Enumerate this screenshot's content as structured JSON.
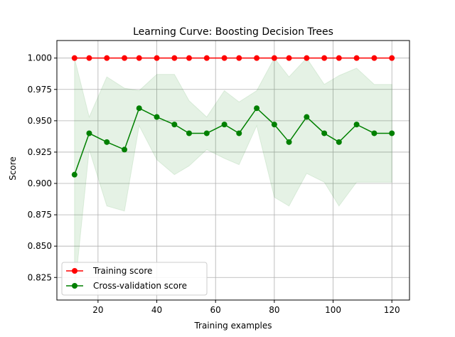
{
  "chart_data": {
    "type": "line",
    "title": "Learning Curve: Boosting Decision Trees",
    "xlabel": "Training examples",
    "ylabel": "Score",
    "xlim": [
      6,
      126
    ],
    "ylim": [
      0.807,
      1.014
    ],
    "xticks": [
      20,
      40,
      60,
      80,
      100,
      120
    ],
    "yticks": [
      0.825,
      0.85,
      0.875,
      0.9,
      0.925,
      0.95,
      0.975,
      1.0
    ],
    "ytick_labels": [
      "0.825",
      "0.850",
      "0.875",
      "0.900",
      "0.925",
      "0.950",
      "0.975",
      "1.000"
    ],
    "grid": true,
    "legend_position": "lower-left",
    "x": [
      12,
      17,
      23,
      29,
      34,
      40,
      46,
      51,
      57,
      63,
      68,
      74,
      80,
      85,
      91,
      97,
      102,
      108,
      114,
      120
    ],
    "series": [
      {
        "name": "Training score",
        "color": "#ff0000",
        "band_color": "#ff0000",
        "values": [
          1,
          1,
          1,
          1,
          1,
          1,
          1,
          1,
          1,
          1,
          1,
          1,
          1,
          1,
          1,
          1,
          1,
          1,
          1,
          1
        ],
        "band_upper": [
          1,
          1,
          1,
          1,
          1,
          1,
          1,
          1,
          1,
          1,
          1,
          1,
          1,
          1,
          1,
          1,
          1,
          1,
          1,
          1
        ],
        "band_lower": [
          1,
          1,
          1,
          1,
          1,
          1,
          1,
          1,
          1,
          1,
          1,
          1,
          1,
          1,
          1,
          1,
          1,
          1,
          1,
          1
        ]
      },
      {
        "name": "Cross-validation score",
        "color": "#008000",
        "band_color": "#008000",
        "values": [
          0.907,
          0.94,
          0.933,
          0.927,
          0.96,
          0.953,
          0.947,
          0.94,
          0.94,
          0.947,
          0.94,
          0.96,
          0.947,
          0.933,
          0.953,
          0.94,
          0.933,
          0.947,
          0.94,
          0.94
        ],
        "band_upper": [
          1.0,
          0.953,
          0.985,
          0.976,
          0.974,
          0.987,
          0.987,
          0.966,
          0.953,
          0.974,
          0.965,
          0.974,
          1.0,
          0.985,
          1.0,
          0.979,
          0.986,
          0.992,
          0.979,
          0.979
        ],
        "band_lower": [
          0.813,
          0.927,
          0.882,
          0.878,
          0.946,
          0.919,
          0.907,
          0.914,
          0.927,
          0.92,
          0.915,
          0.946,
          0.889,
          0.882,
          0.908,
          0.901,
          0.882,
          0.901,
          0.901,
          0.901
        ]
      }
    ]
  }
}
